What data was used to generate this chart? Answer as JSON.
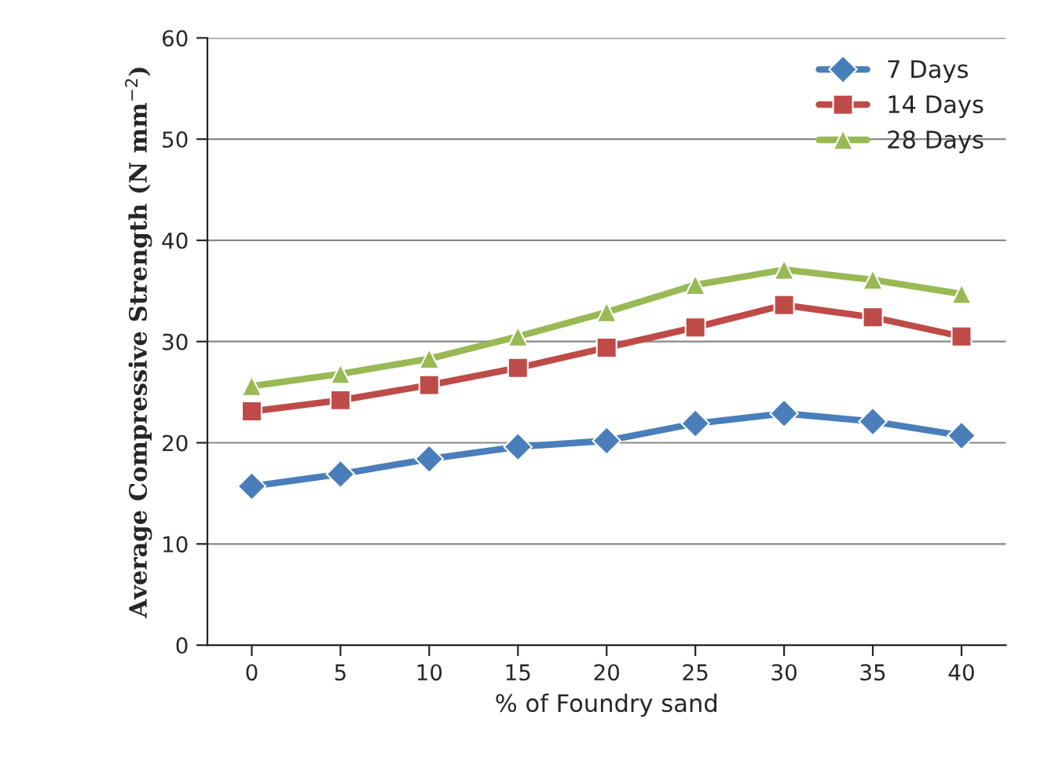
{
  "chart_data": {
    "type": "line",
    "xlabel": "% of Foundry sand",
    "ylabel": "Average Compressive Strength (N mm$^{−2}$)",
    "categories": [
      "0",
      "5",
      "10",
      "15",
      "20",
      "25",
      "30",
      "35",
      "40"
    ],
    "series": [
      {
        "name": "7 Days",
        "color": "#4a7ebb",
        "marker": "diamond",
        "values": [
          15.7,
          16.9,
          18.4,
          19.6,
          20.2,
          21.9,
          22.9,
          22.1,
          20.7
        ]
      },
      {
        "name": "14 Days",
        "color": "#be4b48",
        "marker": "square",
        "values": [
          23.1,
          24.2,
          25.7,
          27.4,
          29.4,
          31.4,
          33.6,
          32.4,
          30.5
        ]
      },
      {
        "name": "28 Days",
        "color": "#98b954",
        "marker": "triangle",
        "values": [
          25.6,
          26.8,
          28.3,
          30.5,
          32.9,
          35.6,
          37.1,
          36.1,
          34.7
        ]
      }
    ],
    "ylim": [
      0,
      60
    ],
    "yticks": [
      0,
      10,
      20,
      30,
      40,
      50,
      60
    ],
    "grid": "y",
    "legend": "top right"
  }
}
